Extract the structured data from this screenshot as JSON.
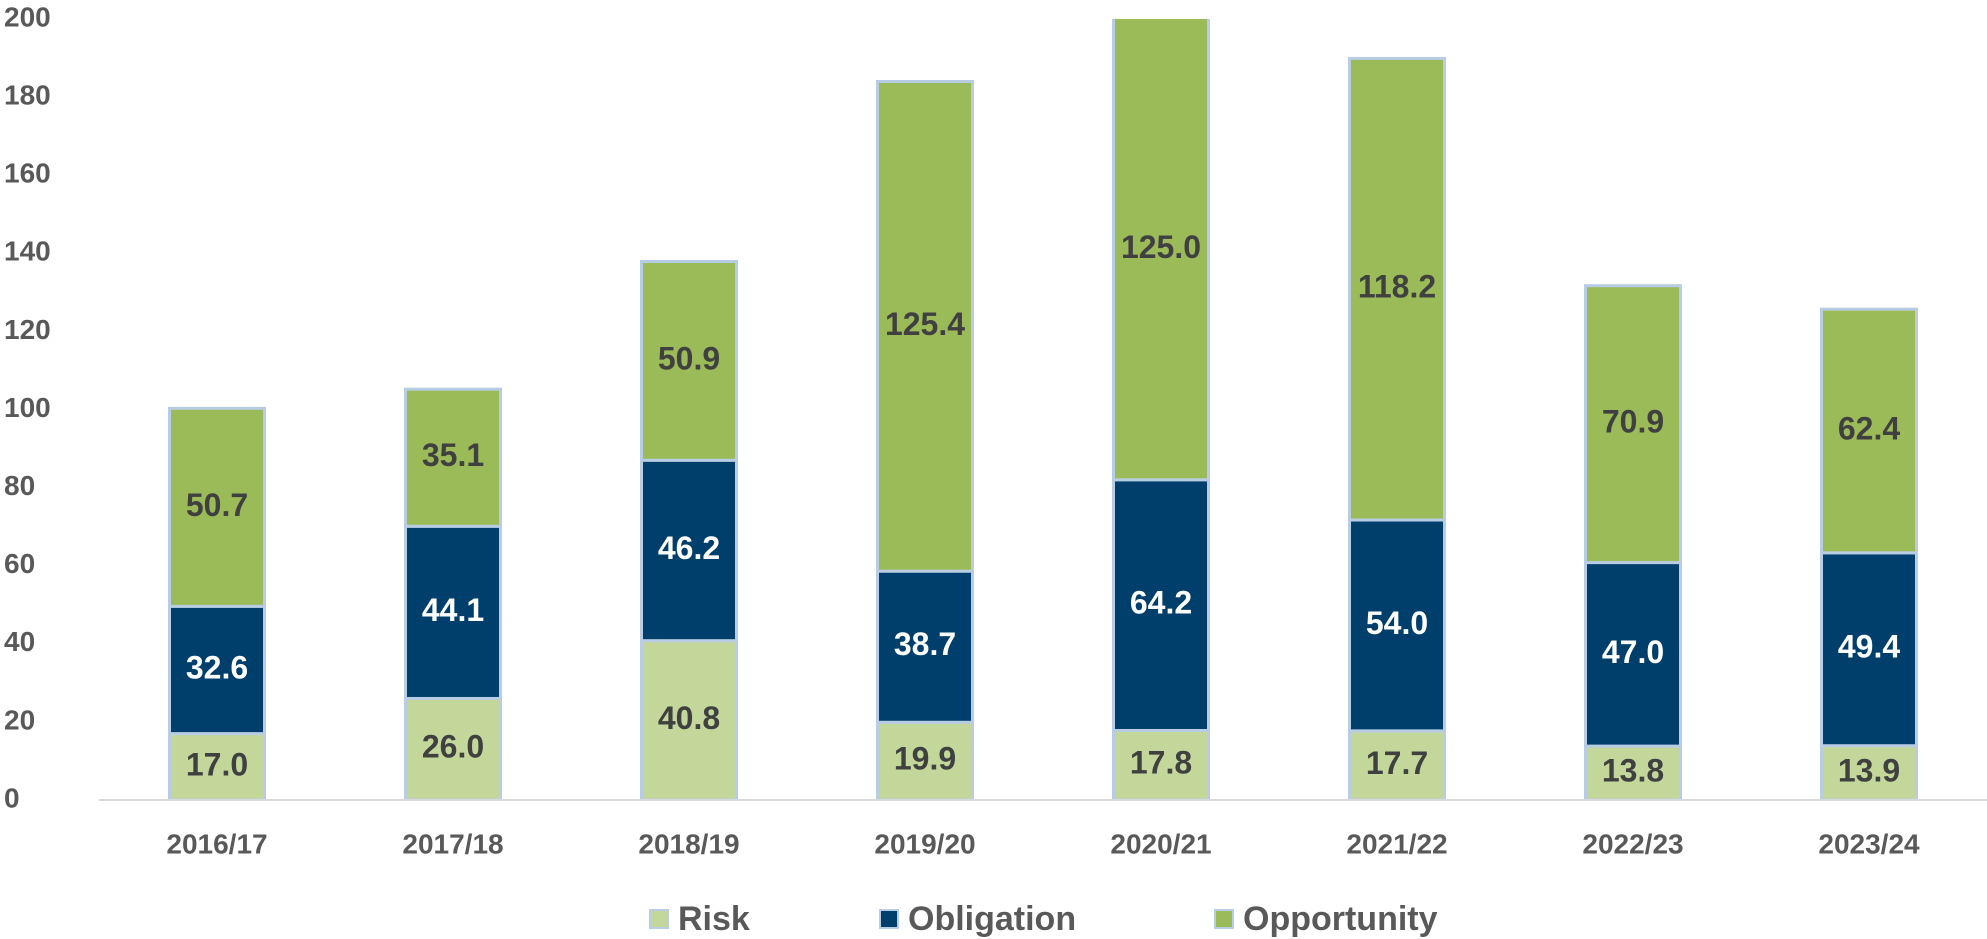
{
  "chart_data": {
    "type": "bar",
    "stacked": true,
    "categories": [
      "2016/17",
      "2017/18",
      "2018/19",
      "2019/20",
      "2020/21",
      "2021/22",
      "2022/23",
      "2023/24"
    ],
    "series": [
      {
        "name": "Risk",
        "color": "#c4d79b",
        "values": [
          17.0,
          26.0,
          40.8,
          19.9,
          17.8,
          17.7,
          13.8,
          13.9
        ],
        "value_labels": [
          "17.0",
          "26.0",
          "40.8",
          "19.9",
          "17.8",
          "17.7",
          "13.8",
          "13.9"
        ]
      },
      {
        "name": "Obligation",
        "color": "#003f6b",
        "values": [
          32.6,
          44.1,
          46.2,
          38.7,
          64.2,
          54.0,
          47.0,
          49.4
        ],
        "value_labels": [
          "32.6",
          "44.1",
          "46.2",
          "38.7",
          "64.2",
          "54.0",
          "47.0",
          "49.4"
        ]
      },
      {
        "name": "Opportunity",
        "color": "#9bbb59",
        "values": [
          50.7,
          35.1,
          50.9,
          125.4,
          125.0,
          118.2,
          70.9,
          62.4
        ],
        "value_labels": [
          "50.7",
          "35.1",
          "50.9",
          "125.4",
          "125.0",
          "118.2",
          "70.9",
          "62.4"
        ]
      }
    ],
    "ylim": [
      0,
      200
    ],
    "yticks": [
      0,
      20,
      40,
      60,
      80,
      100,
      120,
      140,
      160,
      180,
      200
    ],
    "grid": false,
    "legend": "bottom"
  }
}
